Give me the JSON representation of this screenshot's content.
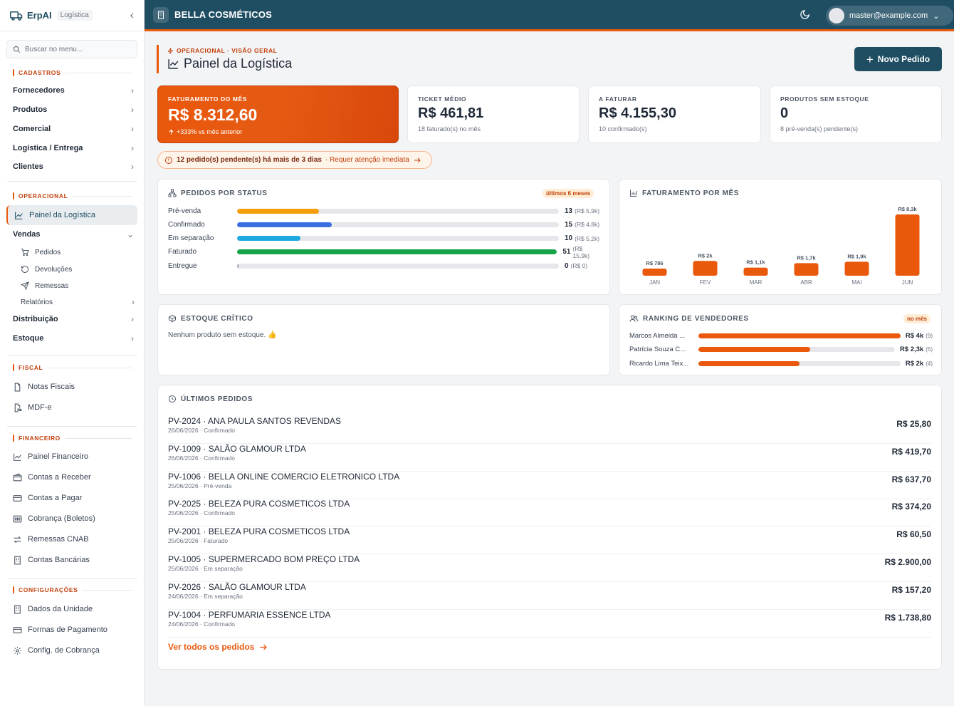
{
  "app": {
    "name": "ErpAI",
    "module_tag": "Logística",
    "company": "BELLA COSMÉTICOS",
    "user_email": "master@example.com"
  },
  "search": {
    "placeholder": "Buscar no menu..."
  },
  "sidebar": {
    "sections": {
      "cadastros": "CADASTROS",
      "operacional": "OPERACIONAL",
      "fiscal": "FISCAL",
      "financeiro": "FINANCEIRO",
      "configuracoes": "CONFIGURAÇÕES"
    },
    "cadastros": [
      "Fornecedores",
      "Produtos",
      "Comercial",
      "Logística / Entrega",
      "Clientes"
    ],
    "operacional": {
      "active": "Painel da Logística",
      "vendas": "Vendas",
      "vendas_sub": [
        "Pedidos",
        "Devoluções",
        "Remessas"
      ],
      "relatorios": "Relatórios",
      "distribuicao": "Distribuição",
      "estoque": "Estoque"
    },
    "fiscal": [
      "Notas Fiscais",
      "MDF-e"
    ],
    "financeiro": [
      "Painel Financeiro",
      "Contas a Receber",
      "Contas a Pagar",
      "Cobrança (Boletos)",
      "Remessas CNAB",
      "Contas Bancárias"
    ],
    "configuracoes": [
      "Dados da Unidade",
      "Formas de Pagamento",
      "Config. de Cobrança"
    ]
  },
  "header": {
    "breadcrumb": "OPERACIONAL · VISÃO GERAL",
    "title": "Painel da Logística",
    "new_button": "Novo Pedido"
  },
  "kpis": [
    {
      "label": "FATURAMENTO DO MÊS",
      "value": "R$ 8.312,60",
      "sub": "+333% vs mês anterior"
    },
    {
      "label": "TICKET MÉDIO",
      "value": "R$ 461,81",
      "sub": "18 faturado(s) no mês"
    },
    {
      "label": "A FATURAR",
      "value": "R$ 4.155,30",
      "sub": "10 confirmado(s)"
    },
    {
      "label": "PRODUTOS SEM ESTOQUE",
      "value": "0",
      "sub": "8 pré-venda(s) pendente(s)"
    }
  ],
  "alert": {
    "text": "12 pedido(s) pendente(s) há mais de 3 dias",
    "action": "· Requer atenção imediata"
  },
  "status_card": {
    "title": "PEDIDOS POR STATUS",
    "badge": "últimos 6 meses",
    "rows": [
      {
        "label": "Pré-venda",
        "count": "13",
        "amount": "(R$ 5,9k)",
        "fraction": 0.255,
        "color": "#f59e0b"
      },
      {
        "label": "Confirmado",
        "count": "15",
        "amount": "(R$ 4,8k)",
        "fraction": 0.294,
        "color": "#3b6fe0"
      },
      {
        "label": "Em separação",
        "count": "10",
        "amount": "(R$ 5,2k)",
        "fraction": 0.196,
        "color": "#1fa9e0"
      },
      {
        "label": "Faturado",
        "count": "51",
        "amount": "(R$ 15,9k)",
        "fraction": 1.0,
        "color": "#16a34a"
      },
      {
        "label": "Entregue",
        "count": "0",
        "amount": "(R$ 0)",
        "fraction": 0.004,
        "color": "#9ca3af"
      }
    ]
  },
  "chart_data": {
    "type": "bar",
    "title": "FATURAMENTO POR MÊS",
    "categories": [
      "JAN",
      "FEV",
      "MAR",
      "ABR",
      "MAI",
      "JUN"
    ],
    "values": [
      786,
      2000,
      1100,
      1700,
      1900,
      8300
    ],
    "value_labels": [
      "R$ 786",
      "R$ 2k",
      "R$ 1,1k",
      "R$ 1,7k",
      "R$ 1,9k",
      "R$ 8,3k"
    ],
    "color": "#ea580c"
  },
  "stock_card": {
    "title": "ESTOQUE CRÍTICO",
    "empty": "Nenhum produto sem estoque. 👍"
  },
  "ranking_card": {
    "title": "RANKING DE VENDEDORES",
    "badge": "no mês",
    "rows": [
      {
        "name": "Marcos Almeida ...",
        "amount": "R$ 4k",
        "count": "(9)",
        "fraction": 1.0
      },
      {
        "name": "Patrícia Souza C...",
        "amount": "R$ 2,3k",
        "count": "(5)",
        "fraction": 0.57
      },
      {
        "name": "Ricardo Lima Teix...",
        "amount": "R$ 2k",
        "count": "(4)",
        "fraction": 0.5
      }
    ]
  },
  "orders_card": {
    "title": "ÚLTIMOS PEDIDOS",
    "see_all": "Ver todos os pedidos",
    "orders": [
      {
        "title": "PV-2024 · ANA PAULA SANTOS REVENDAS",
        "meta": "26/06/2026 · Confirmado",
        "amount": "R$ 25,80"
      },
      {
        "title": "PV-1009 · SALÃO GLAMOUR LTDA",
        "meta": "26/06/2026 · Confirmado",
        "amount": "R$ 419,70"
      },
      {
        "title": "PV-1006 · BELLA ONLINE COMERCIO ELETRONICO LTDA",
        "meta": "25/06/2026 · Pré-venda",
        "amount": "R$ 637,70"
      },
      {
        "title": "PV-2025 · BELEZA PURA COSMETICOS LTDA",
        "meta": "25/06/2026 · Confirmado",
        "amount": "R$ 374,20"
      },
      {
        "title": "PV-2001 · BELEZA PURA COSMETICOS LTDA",
        "meta": "25/06/2026 · Faturado",
        "amount": "R$ 60,50"
      },
      {
        "title": "PV-1005 · SUPERMERCADO BOM PREÇO LTDA",
        "meta": "25/06/2026 · Em separação",
        "amount": "R$ 2.900,00"
      },
      {
        "title": "PV-2026 · SALÃO GLAMOUR LTDA",
        "meta": "24/06/2026 · Em separação",
        "amount": "R$ 157,20"
      },
      {
        "title": "PV-1004 · PERFUMARIA ESSENCE LTDA",
        "meta": "24/06/2026 · Confirmado",
        "amount": "R$ 1.738,80"
      }
    ]
  }
}
